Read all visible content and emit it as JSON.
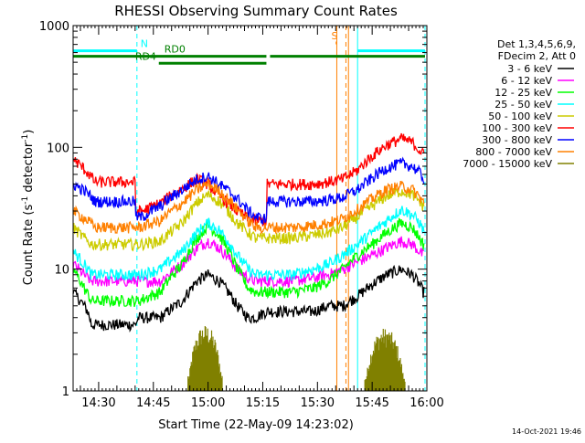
{
  "chart_data": {
    "type": "line",
    "title": "RHESSI Observing Summary Count Rates",
    "xlabel": "Start Time (22-May-09 14:23:02)",
    "ylabel": "Count Rate (s⁻¹ detector⁻¹)",
    "ylabel_parts": [
      "Count Rate (s",
      "-1",
      " detector",
      "-1",
      ")"
    ],
    "yscale": "log",
    "ylim": [
      1,
      1000
    ],
    "xlim_minutes": [
      0,
      97
    ],
    "x_ticks": [
      {
        "min": 7,
        "label": "14:30"
      },
      {
        "min": 22,
        "label": "14:45"
      },
      {
        "min": 37,
        "label": "15:00"
      },
      {
        "min": 52,
        "label": "15:15"
      },
      {
        "min": 67,
        "label": "15:30"
      },
      {
        "min": 82,
        "label": "15:45"
      },
      {
        "min": 97,
        "label": "16:00"
      }
    ],
    "y_ticks": [
      {
        "value": 1,
        "label": "1"
      },
      {
        "value": 10,
        "label": "10"
      },
      {
        "value": 100,
        "label": "100"
      },
      {
        "value": 1000,
        "label": "1000"
      }
    ],
    "legend_header": [
      "Det 1,3,4,5,6,9,",
      "FDecim 2, Att 0"
    ],
    "legend_position": "right",
    "series": [
      {
        "name": "3 - 6 keV",
        "color": "#000000",
        "x": [
          0,
          4,
          5,
          12,
          17,
          18,
          24,
          30,
          34,
          37,
          40,
          45,
          48,
          50,
          53,
          60,
          66,
          70,
          74,
          78,
          82,
          86,
          90,
          93,
          95,
          96
        ],
        "y": [
          6.5,
          4.5,
          3.5,
          3.5,
          3.5,
          4,
          4,
          5.5,
          8,
          9,
          8,
          5,
          4,
          4,
          4.5,
          4.5,
          4.5,
          5,
          5,
          6,
          7.5,
          9,
          10,
          9,
          7.5,
          6.5
        ]
      },
      {
        "name": "6 - 12 keV",
        "color": "#ff00ff",
        "x": [
          0,
          3,
          5,
          12,
          17,
          18,
          24,
          30,
          34,
          37,
          40,
          45,
          48,
          50,
          53,
          60,
          66,
          70,
          74,
          78,
          82,
          86,
          90,
          93,
          95,
          96
        ],
        "y": [
          11,
          9,
          8,
          8,
          8,
          8,
          8,
          11,
          15,
          17,
          15,
          10,
          8.5,
          8,
          8,
          8,
          8.5,
          9,
          10,
          11.5,
          13,
          15,
          17,
          16,
          14,
          13
        ]
      },
      {
        "name": "12 - 25 keV",
        "color": "#00ff00",
        "x": [
          0,
          3,
          5,
          12,
          17,
          18,
          24,
          30,
          34,
          37,
          40,
          45,
          48,
          50,
          53,
          60,
          66,
          70,
          74,
          78,
          82,
          86,
          90,
          93,
          95,
          96
        ],
        "y": [
          10,
          7,
          5.5,
          5.5,
          5.5,
          5.5,
          6.5,
          11,
          18,
          23,
          19,
          10,
          7,
          6.5,
          6.5,
          6.5,
          7,
          8,
          10,
          13,
          16,
          20,
          24,
          22,
          18,
          16
        ]
      },
      {
        "name": "25 - 50 keV",
        "color": "#00ffff",
        "x": [
          0,
          3,
          5,
          12,
          17,
          18,
          24,
          30,
          34,
          37,
          40,
          45,
          48,
          50,
          53,
          60,
          66,
          70,
          74,
          78,
          82,
          86,
          90,
          93,
          95,
          96
        ],
        "y": [
          14,
          11,
          9,
          9,
          9,
          9,
          10,
          14,
          20,
          24,
          21,
          13,
          10,
          9,
          9,
          9,
          10,
          11,
          13,
          16,
          20,
          25,
          31,
          28,
          24,
          21
        ]
      },
      {
        "name": "50 - 100 keV",
        "color": "#cccc00",
        "x": [
          0,
          3,
          5,
          12,
          17,
          18,
          24,
          30,
          34,
          37,
          40,
          45,
          48,
          50,
          53,
          60,
          66,
          70,
          74,
          78,
          82,
          86,
          90,
          93,
          95,
          96
        ],
        "y": [
          22,
          18,
          16,
          16,
          16,
          16,
          17,
          24,
          35,
          41,
          36,
          24,
          20,
          18,
          18,
          18,
          19,
          20,
          22,
          27,
          33,
          40,
          44,
          41,
          36,
          33
        ]
      },
      {
        "name": "100 - 300 keV",
        "color": "#ff0000",
        "x": [
          0,
          4,
          6,
          13,
          16,
          17,
          17.2,
          19,
          24,
          30,
          34,
          37,
          40,
          45,
          48,
          50,
          52,
          53,
          53.2,
          56,
          66,
          70,
          74,
          78,
          82,
          86,
          90,
          93,
          95,
          96
        ],
        "y": [
          80,
          62,
          52,
          52,
          52,
          52,
          30,
          30,
          35,
          46,
          55,
          50,
          40,
          30,
          26,
          25,
          25,
          25,
          50,
          50,
          50,
          52,
          55,
          65,
          85,
          105,
          118,
          110,
          95,
          88
        ]
      },
      {
        "name": "300 - 800 keV",
        "color": "#0000ff",
        "x": [
          0,
          4,
          6,
          13,
          16,
          17,
          17.2,
          19,
          24,
          30,
          34,
          37,
          40,
          45,
          48,
          50,
          52,
          53,
          53.2,
          56,
          66,
          70,
          74,
          78,
          82,
          86,
          90,
          93,
          95,
          96
        ],
        "y": [
          50,
          42,
          36,
          36,
          36,
          36,
          27,
          27,
          33,
          45,
          55,
          58,
          50,
          38,
          30,
          27,
          26,
          26,
          36,
          36,
          36,
          37,
          39,
          45,
          56,
          68,
          74,
          70,
          62,
          56
        ]
      },
      {
        "name": "800 - 7000 keV",
        "color": "#ff8000",
        "x": [
          0,
          4,
          6,
          13,
          17,
          18,
          24,
          30,
          34,
          37,
          40,
          45,
          48,
          50,
          53,
          60,
          66,
          70,
          74,
          78,
          82,
          86,
          90,
          93,
          95,
          96
        ],
        "y": [
          30,
          25,
          22,
          22,
          22,
          22,
          25,
          35,
          45,
          50,
          44,
          31,
          25,
          22,
          22,
          22,
          23,
          24,
          26,
          31,
          38,
          45,
          48,
          45,
          39,
          36
        ]
      },
      {
        "name": "7000 - 15000 keV",
        "color": "#808000",
        "bursts": true,
        "bursts_data": [
          {
            "x_from": 31.5,
            "x_to": 41,
            "y_from": 1,
            "y_peak": 3.5
          },
          {
            "x_from": 80,
            "x_to": 91,
            "y_from": 1,
            "y_peak": 3.3
          }
        ]
      }
    ],
    "flags": [
      {
        "label": "N",
        "color": "#00ffff",
        "y_value": 620,
        "segments": [
          [
            0,
            17.5
          ],
          [
            78,
            96.5
          ]
        ],
        "label_x": 18.5
      },
      {
        "label": "S",
        "color": "#ff8000",
        "y_value": 720,
        "segments": [
          [
            72,
            72.4
          ]
        ],
        "label_x": 70.8
      },
      {
        "label": "RD0",
        "color": "#008000",
        "y_value": 560,
        "segments": [
          [
            0,
            53
          ],
          [
            54,
            96.5
          ]
        ],
        "label_x": 25
      },
      {
        "label": "RD4",
        "color": "#008000",
        "y_value": 490,
        "segments": [
          [
            23.5,
            53
          ]
        ],
        "label_x": 17
      }
    ],
    "vlines": [
      {
        "x": 17.5,
        "color": "#00ffff",
        "dashed": true
      },
      {
        "x": 78,
        "color": "#00ffff",
        "dashed": false
      },
      {
        "x": 96.5,
        "color": "#00ffff",
        "dashed": true
      },
      {
        "x": 72.3,
        "color": "#ff8000",
        "dashed": false
      },
      {
        "x": 74.8,
        "color": "#ff8000",
        "dashed": true
      },
      {
        "x": 75.5,
        "color": "#ff8000",
        "dashed": false
      }
    ],
    "grid": false
  },
  "footer": {
    "timestamp": "14-Oct-2021 19:46"
  }
}
